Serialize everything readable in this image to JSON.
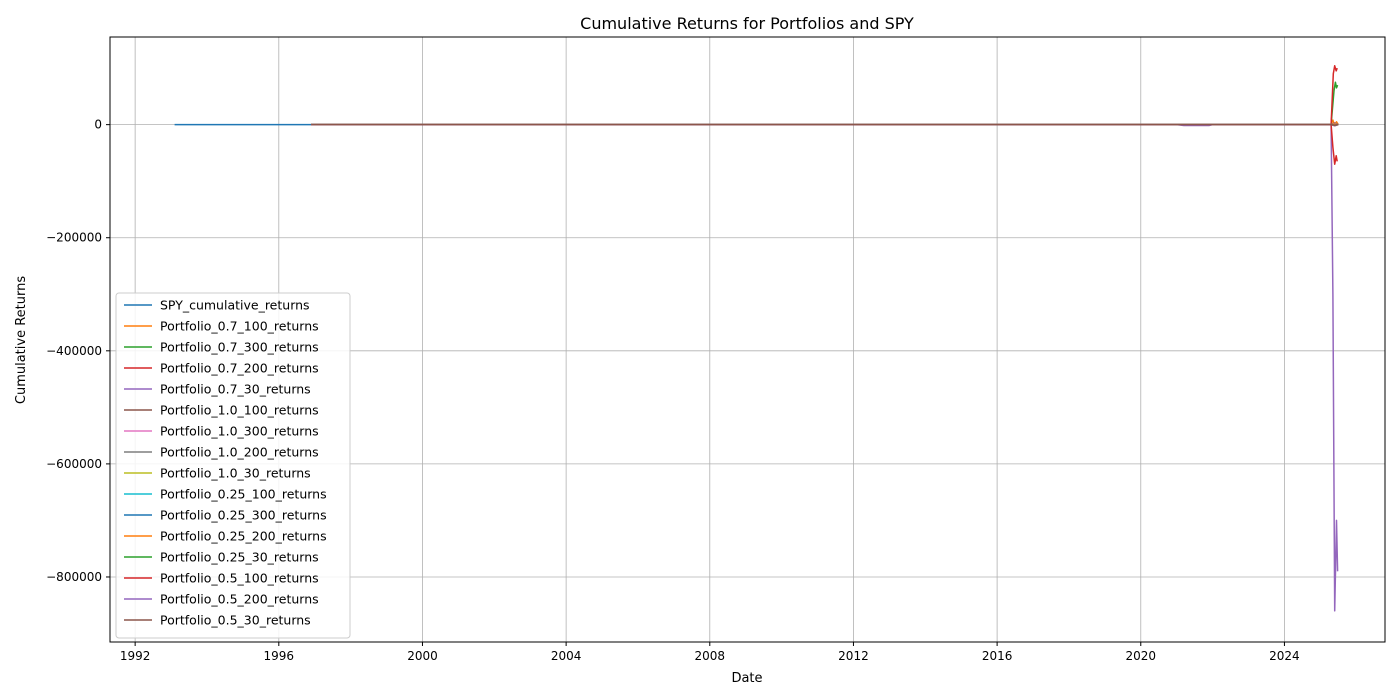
{
  "chart_data": {
    "type": "line",
    "title": "Cumulative Returns for Portfolios and SPY",
    "xlabel": "Date",
    "ylabel": "Cumulative Returns",
    "xlim": [
      1991.3,
      2026.8
    ],
    "ylim": [
      -915000,
      155000
    ],
    "x_ticks": [
      {
        "value": 1992,
        "label": "1992"
      },
      {
        "value": 1996,
        "label": "1996"
      },
      {
        "value": 2000,
        "label": "2000"
      },
      {
        "value": 2004,
        "label": "2004"
      },
      {
        "value": 2008,
        "label": "2008"
      },
      {
        "value": 2012,
        "label": "2012"
      },
      {
        "value": 2016,
        "label": "2016"
      },
      {
        "value": 2020,
        "label": "2020"
      },
      {
        "value": 2024,
        "label": "2024"
      }
    ],
    "y_ticks": [
      {
        "value": 0,
        "label": "0"
      },
      {
        "value": -200000,
        "label": "−200000"
      },
      {
        "value": -400000,
        "label": "−400000"
      },
      {
        "value": -600000,
        "label": "−600000"
      },
      {
        "value": -800000,
        "label": "−800000"
      }
    ],
    "grid": true,
    "legend_position": "lower-left",
    "series": [
      {
        "name": "SPY_cumulative_returns",
        "color": "#1f77b4",
        "points": [
          [
            1993.1,
            0
          ],
          [
            2025.4,
            0
          ]
        ]
      },
      {
        "name": "Portfolio_0.7_100_returns",
        "color": "#ff7f0e",
        "points": [
          [
            1996.9,
            0
          ],
          [
            2025.3,
            0
          ],
          [
            2025.35,
            8000
          ],
          [
            2025.4,
            -2000
          ],
          [
            2025.45,
            5000
          ],
          [
            2025.5,
            0
          ]
        ]
      },
      {
        "name": "Portfolio_0.7_300_returns",
        "color": "#2ca02c",
        "points": [
          [
            1996.9,
            0
          ],
          [
            2025.3,
            0
          ],
          [
            2025.38,
            60000
          ],
          [
            2025.42,
            75000
          ],
          [
            2025.45,
            65000
          ],
          [
            2025.48,
            70000
          ]
        ]
      },
      {
        "name": "Portfolio_0.7_200_returns",
        "color": "#d62728",
        "points": [
          [
            1996.9,
            0
          ],
          [
            2025.3,
            0
          ],
          [
            2025.36,
            90000
          ],
          [
            2025.4,
            104000
          ],
          [
            2025.44,
            95000
          ],
          [
            2025.47,
            100000
          ]
        ]
      },
      {
        "name": "Portfolio_0.7_30_returns",
        "color": "#9467bd",
        "points": [
          [
            1996.9,
            0
          ],
          [
            2021.0,
            0
          ],
          [
            2021.2,
            -1500
          ],
          [
            2021.9,
            -1500
          ],
          [
            2022.0,
            0
          ],
          [
            2025.3,
            0
          ],
          [
            2025.35,
            -300000
          ],
          [
            2025.4,
            -860000
          ],
          [
            2025.45,
            -700000
          ],
          [
            2025.48,
            -790000
          ]
        ]
      },
      {
        "name": "Portfolio_1.0_100_returns",
        "color": "#8c564b",
        "points": [
          [
            1996.9,
            0
          ],
          [
            2025.3,
            0
          ],
          [
            2025.4,
            3000
          ],
          [
            2025.5,
            0
          ]
        ]
      },
      {
        "name": "Portfolio_1.0_300_returns",
        "color": "#e377c2",
        "points": [
          [
            1996.9,
            0
          ],
          [
            2025.3,
            0
          ],
          [
            2025.4,
            2000
          ],
          [
            2025.5,
            0
          ]
        ]
      },
      {
        "name": "Portfolio_1.0_200_returns",
        "color": "#7f7f7f",
        "points": [
          [
            1996.9,
            0
          ],
          [
            2025.3,
            0
          ],
          [
            2025.4,
            1500
          ],
          [
            2025.5,
            0
          ]
        ]
      },
      {
        "name": "Portfolio_1.0_30_returns",
        "color": "#bcbd22",
        "points": [
          [
            1996.9,
            0
          ],
          [
            2025.3,
            0
          ],
          [
            2025.4,
            -2000
          ],
          [
            2025.5,
            0
          ]
        ]
      },
      {
        "name": "Portfolio_0.25_100_returns",
        "color": "#17becf",
        "points": [
          [
            1996.9,
            0
          ],
          [
            2025.3,
            0
          ],
          [
            2025.4,
            1000
          ],
          [
            2025.5,
            0
          ]
        ]
      },
      {
        "name": "Portfolio_0.25_300_returns",
        "color": "#1f77b4",
        "points": [
          [
            1996.9,
            0
          ],
          [
            2025.3,
            0
          ],
          [
            2025.4,
            1000
          ],
          [
            2025.5,
            0
          ]
        ]
      },
      {
        "name": "Portfolio_0.25_200_returns",
        "color": "#ff7f0e",
        "points": [
          [
            1996.9,
            0
          ],
          [
            2025.3,
            0
          ],
          [
            2025.4,
            1000
          ],
          [
            2025.5,
            0
          ]
        ]
      },
      {
        "name": "Portfolio_0.25_30_returns",
        "color": "#2ca02c",
        "points": [
          [
            1996.9,
            0
          ],
          [
            2025.3,
            0
          ],
          [
            2025.4,
            -1000
          ],
          [
            2025.5,
            0
          ]
        ]
      },
      {
        "name": "Portfolio_0.5_100_returns",
        "color": "#d62728",
        "points": [
          [
            1996.9,
            0
          ],
          [
            2025.3,
            0
          ],
          [
            2025.35,
            -40000
          ],
          [
            2025.4,
            -70000
          ],
          [
            2025.44,
            -55000
          ],
          [
            2025.47,
            -65000
          ]
        ]
      },
      {
        "name": "Portfolio_0.5_200_returns",
        "color": "#9467bd",
        "points": [
          [
            1996.9,
            0
          ],
          [
            2025.3,
            0
          ],
          [
            2025.4,
            -2000
          ],
          [
            2025.5,
            0
          ]
        ]
      },
      {
        "name": "Portfolio_0.5_30_returns",
        "color": "#8c564b",
        "points": [
          [
            1996.9,
            0
          ],
          [
            2025.3,
            0
          ],
          [
            2025.4,
            -1000
          ],
          [
            2025.5,
            0
          ]
        ]
      }
    ]
  }
}
